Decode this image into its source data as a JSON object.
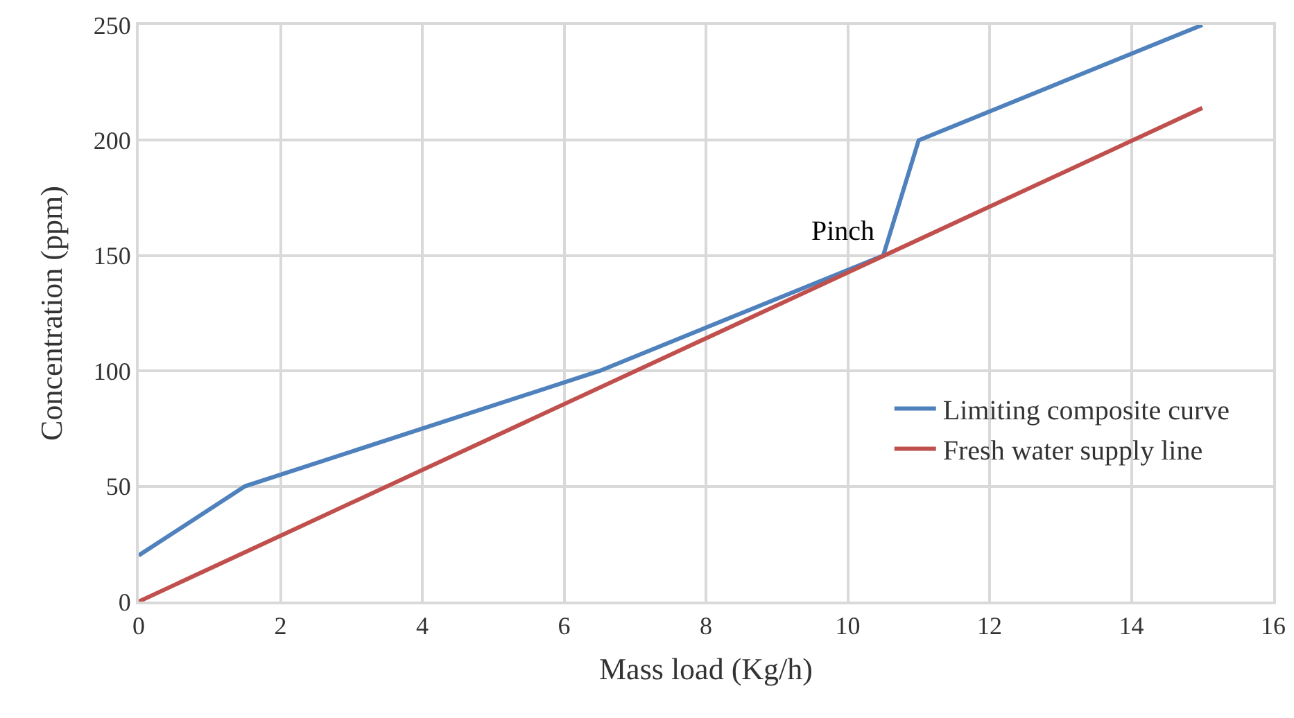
{
  "chart_data": {
    "type": "line",
    "xlabel": "Mass load (Kg/h)",
    "ylabel": "Concentration (ppm)",
    "series": [
      {
        "name": "Limiting composite curve",
        "color": "#4f81bd",
        "x": [
          0,
          1.5,
          6.5,
          10.5,
          11,
          15
        ],
        "values": [
          20,
          50,
          100,
          150,
          200,
          250
        ]
      },
      {
        "name": "Fresh water supply line",
        "color": "#c0504d",
        "x": [
          0,
          15
        ],
        "values": [
          0,
          214
        ]
      }
    ],
    "xlim": [
      0,
      16
    ],
    "xticks": [
      0,
      2,
      4,
      6,
      8,
      10,
      12,
      14,
      16
    ],
    "ylim": [
      0,
      250
    ],
    "yticks": [
      0,
      50,
      100,
      150,
      200,
      250
    ],
    "grid": true,
    "legend": "right",
    "marker": "none",
    "line_style": "solid",
    "annotations": [
      {
        "text": "Pinch",
        "x": 10.5,
        "y": 150
      }
    ]
  }
}
